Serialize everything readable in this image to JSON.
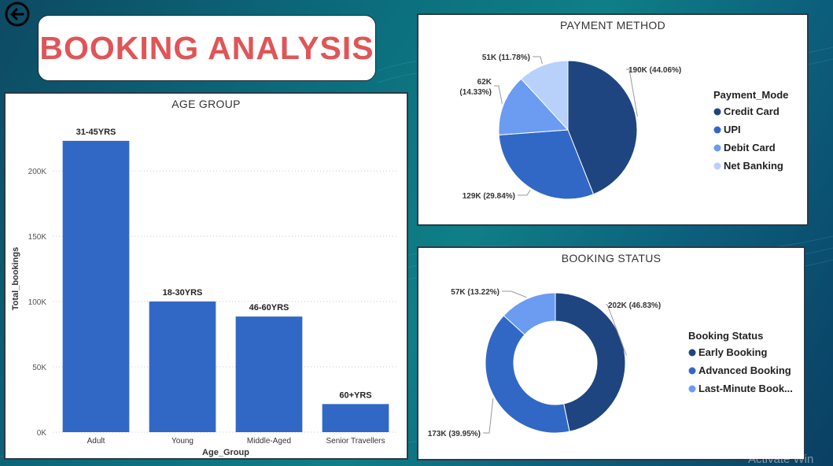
{
  "page": {
    "title": "BOOKING ANALYSIS",
    "watermark": "Activate Win"
  },
  "colors": {
    "title_red": "#e05557",
    "bar_blue": "#3168c5",
    "dark_navy": "#1f4580",
    "mid_blue": "#3168c5",
    "light_blue": "#6b9cf2",
    "pale_blue": "#b7d1fb"
  },
  "icons": {
    "back": "arrow-left-circle-icon"
  },
  "chart_data": [
    {
      "type": "bar",
      "title": "AGE GROUP",
      "xlabel": "Age_Group",
      "ylabel": "Total_bookings",
      "categories": [
        "Adult",
        "Young",
        "Middle-Aged",
        "Senior Travellers"
      ],
      "values": [
        223000,
        100000,
        88500,
        21500
      ],
      "data_labels": [
        "31-45YRS",
        "18-30YRS",
        "46-60YRS",
        "60+YRS"
      ],
      "yticks": [
        0,
        50000,
        100000,
        150000,
        200000
      ],
      "ytick_labels": [
        "0K",
        "50K",
        "100K",
        "150K",
        "200K"
      ],
      "ylim": [
        0,
        235000
      ],
      "grid": true
    },
    {
      "type": "pie",
      "title": "PAYMENT METHOD",
      "legend_title": "Payment_Mode",
      "legend_position": "right",
      "slices": [
        {
          "name": "Credit Card",
          "value": 190000,
          "label": "190K (44.06%)",
          "percent": 44.06,
          "color": "#1f4580"
        },
        {
          "name": "UPI",
          "value": 129000,
          "label": "129K (29.84%)",
          "percent": 29.84,
          "color": "#3168c5"
        },
        {
          "name": "Debit Card",
          "value": 62000,
          "label": "62K (14.33%)",
          "percent": 14.33,
          "color": "#6b9cf2"
        },
        {
          "name": "Net Banking",
          "value": 51000,
          "label": "51K (11.78%)",
          "percent": 11.78,
          "color": "#b7d1fb"
        }
      ]
    },
    {
      "type": "pie",
      "title": "BOOKING STATUS",
      "legend_title": "Booking Status",
      "legend_position": "right",
      "donut": true,
      "slices": [
        {
          "name": "Early Booking",
          "value": 202000,
          "label": "202K (46.83%)",
          "percent": 46.83,
          "color": "#1f4580"
        },
        {
          "name": "Advanced Booking",
          "value": 173000,
          "label": "173K (39.95%)",
          "percent": 39.95,
          "color": "#3168c5"
        },
        {
          "name": "Last-Minute Book...",
          "value": 57000,
          "label": "57K (13.22%)",
          "percent": 13.22,
          "color": "#6b9cf2"
        }
      ]
    }
  ]
}
